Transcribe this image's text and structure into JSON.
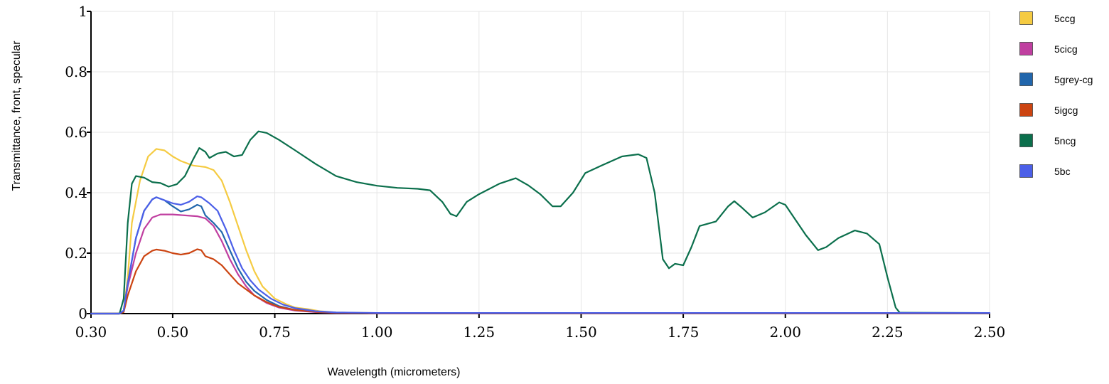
{
  "chart_data": {
    "type": "line",
    "title": "",
    "xlabel": "Wavelength (micrometers)",
    "ylabel": "Transmittance, front, specular",
    "xlim": [
      0.3,
      2.5
    ],
    "ylim": [
      0,
      1
    ],
    "xticks": [
      0.3,
      0.5,
      0.75,
      1.0,
      1.25,
      1.5,
      1.75,
      2.0,
      2.25,
      2.5
    ],
    "xtick_labels": [
      "0.30",
      "0.50",
      "0.75",
      "1.00",
      "1.25",
      "1.50",
      "1.75",
      "2.00",
      "2.25",
      "2.50"
    ],
    "yticks": [
      0,
      0.2,
      0.4,
      0.6,
      0.8,
      1
    ],
    "ytick_labels": [
      "0",
      "0.2",
      "0.4",
      "0.6",
      "0.8",
      "1"
    ],
    "grid": true,
    "legend_position": "right",
    "series": [
      {
        "name": "5ccg",
        "color": "#F5CB42",
        "points": [
          [
            0.3,
            0
          ],
          [
            0.37,
            0
          ],
          [
            0.38,
            0.01
          ],
          [
            0.39,
            0.12
          ],
          [
            0.4,
            0.3
          ],
          [
            0.42,
            0.44
          ],
          [
            0.44,
            0.52
          ],
          [
            0.46,
            0.545
          ],
          [
            0.48,
            0.54
          ],
          [
            0.5,
            0.52
          ],
          [
            0.52,
            0.505
          ],
          [
            0.55,
            0.49
          ],
          [
            0.58,
            0.485
          ],
          [
            0.6,
            0.475
          ],
          [
            0.62,
            0.44
          ],
          [
            0.64,
            0.37
          ],
          [
            0.66,
            0.29
          ],
          [
            0.68,
            0.21
          ],
          [
            0.7,
            0.14
          ],
          [
            0.72,
            0.09
          ],
          [
            0.75,
            0.05
          ],
          [
            0.78,
            0.03
          ],
          [
            0.8,
            0.02
          ],
          [
            0.83,
            0.015
          ],
          [
            0.86,
            0.008
          ],
          [
            0.9,
            0.004
          ],
          [
            1.0,
            0.002
          ],
          [
            1.5,
            0.001
          ],
          [
            2.5,
            0.001
          ]
        ]
      },
      {
        "name": "5cicg",
        "color": "#C03FA0",
        "points": [
          [
            0.3,
            0
          ],
          [
            0.37,
            0
          ],
          [
            0.38,
            0.01
          ],
          [
            0.39,
            0.09
          ],
          [
            0.41,
            0.2
          ],
          [
            0.43,
            0.28
          ],
          [
            0.45,
            0.318
          ],
          [
            0.47,
            0.328
          ],
          [
            0.5,
            0.328
          ],
          [
            0.53,
            0.325
          ],
          [
            0.56,
            0.322
          ],
          [
            0.58,
            0.315
          ],
          [
            0.6,
            0.29
          ],
          [
            0.62,
            0.24
          ],
          [
            0.64,
            0.18
          ],
          [
            0.66,
            0.13
          ],
          [
            0.68,
            0.09
          ],
          [
            0.7,
            0.06
          ],
          [
            0.73,
            0.035
          ],
          [
            0.76,
            0.02
          ],
          [
            0.8,
            0.01
          ],
          [
            0.85,
            0.005
          ],
          [
            0.9,
            0.002
          ],
          [
            1.0,
            0.001
          ],
          [
            2.5,
            0.001
          ]
        ]
      },
      {
        "name": "5grey-cg",
        "color": "#2166AC",
        "points": [
          [
            0.3,
            0
          ],
          [
            0.37,
            0
          ],
          [
            0.38,
            0.01
          ],
          [
            0.39,
            0.1
          ],
          [
            0.41,
            0.25
          ],
          [
            0.43,
            0.34
          ],
          [
            0.45,
            0.378
          ],
          [
            0.46,
            0.385
          ],
          [
            0.48,
            0.375
          ],
          [
            0.5,
            0.355
          ],
          [
            0.52,
            0.338
          ],
          [
            0.54,
            0.345
          ],
          [
            0.56,
            0.36
          ],
          [
            0.57,
            0.355
          ],
          [
            0.58,
            0.325
          ],
          [
            0.6,
            0.3
          ],
          [
            0.62,
            0.27
          ],
          [
            0.64,
            0.21
          ],
          [
            0.66,
            0.15
          ],
          [
            0.68,
            0.105
          ],
          [
            0.7,
            0.075
          ],
          [
            0.73,
            0.045
          ],
          [
            0.76,
            0.025
          ],
          [
            0.8,
            0.012
          ],
          [
            0.85,
            0.006
          ],
          [
            0.9,
            0.003
          ],
          [
            1.0,
            0.001
          ],
          [
            2.5,
            0.001
          ]
        ]
      },
      {
        "name": "5igcg",
        "color": "#CC4411",
        "points": [
          [
            0.3,
            0
          ],
          [
            0.37,
            0
          ],
          [
            0.38,
            0.005
          ],
          [
            0.39,
            0.06
          ],
          [
            0.41,
            0.14
          ],
          [
            0.43,
            0.19
          ],
          [
            0.45,
            0.208
          ],
          [
            0.46,
            0.212
          ],
          [
            0.48,
            0.208
          ],
          [
            0.5,
            0.2
          ],
          [
            0.52,
            0.195
          ],
          [
            0.54,
            0.2
          ],
          [
            0.56,
            0.213
          ],
          [
            0.57,
            0.21
          ],
          [
            0.58,
            0.19
          ],
          [
            0.6,
            0.18
          ],
          [
            0.62,
            0.16
          ],
          [
            0.64,
            0.13
          ],
          [
            0.66,
            0.1
          ],
          [
            0.68,
            0.08
          ],
          [
            0.7,
            0.06
          ],
          [
            0.73,
            0.038
          ],
          [
            0.76,
            0.022
          ],
          [
            0.8,
            0.012
          ],
          [
            0.85,
            0.006
          ],
          [
            0.9,
            0.003
          ],
          [
            1.0,
            0.001
          ],
          [
            2.5,
            0.001
          ]
        ]
      },
      {
        "name": "5ncg",
        "color": "#0B6F4C",
        "points": [
          [
            0.3,
            0
          ],
          [
            0.37,
            0
          ],
          [
            0.38,
            0.05
          ],
          [
            0.39,
            0.3
          ],
          [
            0.4,
            0.43
          ],
          [
            0.41,
            0.455
          ],
          [
            0.43,
            0.45
          ],
          [
            0.45,
            0.435
          ],
          [
            0.47,
            0.432
          ],
          [
            0.49,
            0.42
          ],
          [
            0.51,
            0.428
          ],
          [
            0.53,
            0.455
          ],
          [
            0.55,
            0.51
          ],
          [
            0.565,
            0.548
          ],
          [
            0.58,
            0.535
          ],
          [
            0.59,
            0.515
          ],
          [
            0.61,
            0.53
          ],
          [
            0.63,
            0.535
          ],
          [
            0.65,
            0.52
          ],
          [
            0.67,
            0.525
          ],
          [
            0.69,
            0.575
          ],
          [
            0.71,
            0.603
          ],
          [
            0.73,
            0.598
          ],
          [
            0.76,
            0.575
          ],
          [
            0.8,
            0.54
          ],
          [
            0.85,
            0.495
          ],
          [
            0.9,
            0.455
          ],
          [
            0.95,
            0.435
          ],
          [
            1.0,
            0.423
          ],
          [
            1.05,
            0.416
          ],
          [
            1.1,
            0.413
          ],
          [
            1.13,
            0.408
          ],
          [
            1.16,
            0.37
          ],
          [
            1.18,
            0.33
          ],
          [
            1.195,
            0.322
          ],
          [
            1.22,
            0.37
          ],
          [
            1.25,
            0.395
          ],
          [
            1.3,
            0.43
          ],
          [
            1.34,
            0.448
          ],
          [
            1.37,
            0.425
          ],
          [
            1.4,
            0.395
          ],
          [
            1.43,
            0.355
          ],
          [
            1.45,
            0.355
          ],
          [
            1.48,
            0.4
          ],
          [
            1.51,
            0.465
          ],
          [
            1.55,
            0.49
          ],
          [
            1.6,
            0.52
          ],
          [
            1.64,
            0.527
          ],
          [
            1.66,
            0.515
          ],
          [
            1.68,
            0.4
          ],
          [
            1.7,
            0.18
          ],
          [
            1.715,
            0.15
          ],
          [
            1.73,
            0.165
          ],
          [
            1.75,
            0.16
          ],
          [
            1.77,
            0.22
          ],
          [
            1.79,
            0.29
          ],
          [
            1.83,
            0.305
          ],
          [
            1.86,
            0.355
          ],
          [
            1.875,
            0.372
          ],
          [
            1.89,
            0.355
          ],
          [
            1.92,
            0.318
          ],
          [
            1.95,
            0.335
          ],
          [
            1.985,
            0.368
          ],
          [
            2.0,
            0.36
          ],
          [
            2.02,
            0.32
          ],
          [
            2.05,
            0.26
          ],
          [
            2.08,
            0.21
          ],
          [
            2.1,
            0.22
          ],
          [
            2.13,
            0.25
          ],
          [
            2.17,
            0.275
          ],
          [
            2.2,
            0.265
          ],
          [
            2.23,
            0.23
          ],
          [
            2.25,
            0.12
          ],
          [
            2.27,
            0.02
          ],
          [
            2.28,
            0.003
          ],
          [
            2.5,
            0.002
          ]
        ]
      },
      {
        "name": "5bc",
        "color": "#4B5FE8",
        "points": [
          [
            0.3,
            0
          ],
          [
            0.37,
            0
          ],
          [
            0.38,
            0.01
          ],
          [
            0.39,
            0.1
          ],
          [
            0.41,
            0.25
          ],
          [
            0.43,
            0.34
          ],
          [
            0.45,
            0.378
          ],
          [
            0.46,
            0.385
          ],
          [
            0.48,
            0.375
          ],
          [
            0.5,
            0.365
          ],
          [
            0.52,
            0.36
          ],
          [
            0.54,
            0.37
          ],
          [
            0.56,
            0.388
          ],
          [
            0.57,
            0.385
          ],
          [
            0.59,
            0.365
          ],
          [
            0.61,
            0.34
          ],
          [
            0.63,
            0.28
          ],
          [
            0.65,
            0.21
          ],
          [
            0.67,
            0.15
          ],
          [
            0.69,
            0.11
          ],
          [
            0.71,
            0.08
          ],
          [
            0.74,
            0.05
          ],
          [
            0.77,
            0.03
          ],
          [
            0.8,
            0.018
          ],
          [
            0.85,
            0.008
          ],
          [
            0.9,
            0.004
          ],
          [
            1.0,
            0.002
          ],
          [
            2.5,
            0.002
          ]
        ]
      }
    ]
  }
}
